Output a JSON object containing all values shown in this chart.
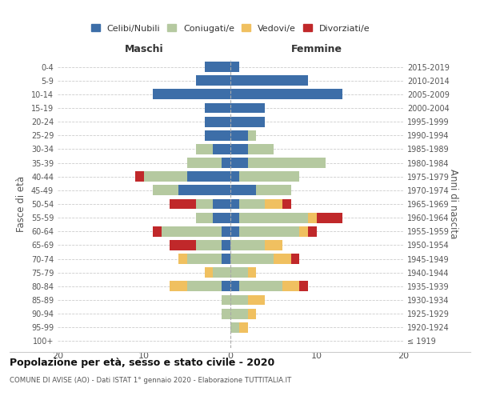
{
  "age_groups": [
    "100+",
    "95-99",
    "90-94",
    "85-89",
    "80-84",
    "75-79",
    "70-74",
    "65-69",
    "60-64",
    "55-59",
    "50-54",
    "45-49",
    "40-44",
    "35-39",
    "30-34",
    "25-29",
    "20-24",
    "15-19",
    "10-14",
    "5-9",
    "0-4"
  ],
  "birth_years": [
    "≤ 1919",
    "1920-1924",
    "1925-1929",
    "1930-1934",
    "1935-1939",
    "1940-1944",
    "1945-1949",
    "1950-1954",
    "1955-1959",
    "1960-1964",
    "1965-1969",
    "1970-1974",
    "1975-1979",
    "1980-1984",
    "1985-1989",
    "1990-1994",
    "1995-1999",
    "2000-2004",
    "2005-2009",
    "2010-2014",
    "2015-2019"
  ],
  "colors": {
    "celibi": "#3d6ea8",
    "coniugati": "#b5c9a0",
    "vedovi": "#f0c060",
    "divorziati": "#c0282a"
  },
  "maschi": {
    "celibi": [
      0,
      0,
      0,
      0,
      1,
      0,
      1,
      1,
      1,
      2,
      2,
      6,
      5,
      1,
      2,
      3,
      3,
      3,
      9,
      4,
      3
    ],
    "coniugati": [
      0,
      0,
      1,
      1,
      4,
      2,
      4,
      3,
      7,
      2,
      2,
      3,
      5,
      4,
      2,
      0,
      0,
      0,
      0,
      0,
      0
    ],
    "vedovi": [
      0,
      0,
      0,
      0,
      2,
      1,
      1,
      0,
      0,
      0,
      0,
      0,
      0,
      0,
      0,
      0,
      0,
      0,
      0,
      0,
      0
    ],
    "divorziati": [
      0,
      0,
      0,
      0,
      0,
      0,
      0,
      3,
      1,
      0,
      3,
      0,
      1,
      0,
      0,
      0,
      0,
      0,
      0,
      0,
      0
    ]
  },
  "femmine": {
    "celibi": [
      0,
      0,
      0,
      0,
      1,
      0,
      0,
      0,
      1,
      1,
      1,
      3,
      1,
      2,
      2,
      2,
      4,
      4,
      13,
      9,
      1
    ],
    "coniugati": [
      0,
      1,
      2,
      2,
      5,
      2,
      5,
      4,
      7,
      8,
      3,
      4,
      7,
      9,
      3,
      1,
      0,
      0,
      0,
      0,
      0
    ],
    "vedovi": [
      0,
      1,
      1,
      2,
      2,
      1,
      2,
      2,
      1,
      1,
      2,
      0,
      0,
      0,
      0,
      0,
      0,
      0,
      0,
      0,
      0
    ],
    "divorziati": [
      0,
      0,
      0,
      0,
      1,
      0,
      1,
      0,
      1,
      3,
      1,
      0,
      0,
      0,
      0,
      0,
      0,
      0,
      0,
      0,
      0
    ]
  },
  "xlim": 20,
  "title": "Popolazione per età, sesso e stato civile - 2020",
  "subtitle": "COMUNE DI AVISE (AO) - Dati ISTAT 1° gennaio 2020 - Elaborazione TUTTITALIA.IT",
  "ylabel_left": "Fasce di età",
  "ylabel_right": "Anni di nascita",
  "xlabel_maschi": "Maschi",
  "xlabel_femmine": "Femmine",
  "legend_labels": [
    "Celibi/Nubili",
    "Coniugati/e",
    "Vedovi/e",
    "Divorziati/e"
  ],
  "bg_color": "#ffffff",
  "grid_color": "#cccccc"
}
